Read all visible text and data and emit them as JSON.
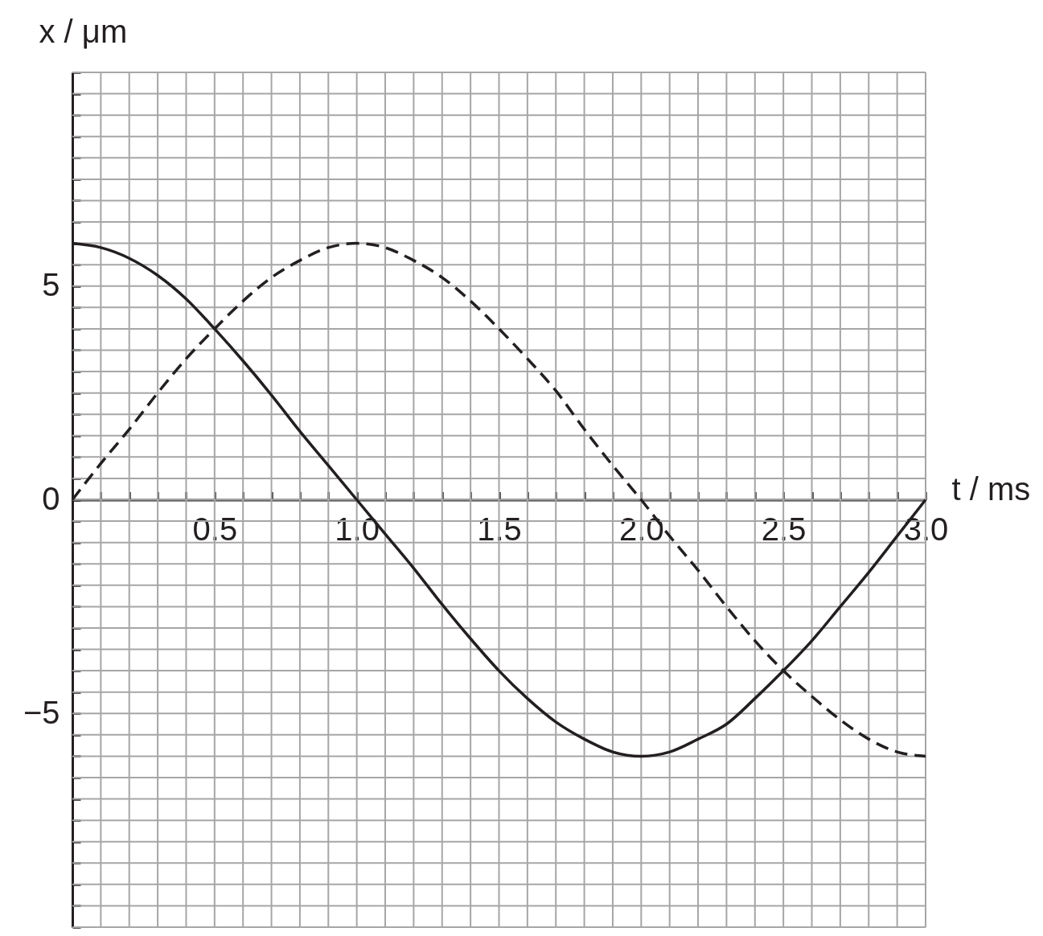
{
  "chart_data": {
    "type": "line",
    "xlabel": "t / ms",
    "ylabel": "x / μm",
    "x": [
      0,
      0.1,
      0.2,
      0.3,
      0.4,
      0.5,
      0.6,
      0.7,
      0.8,
      0.9,
      1,
      1.1,
      1.2,
      1.3,
      1.4,
      1.5,
      1.6,
      1.7,
      1.8,
      1.9,
      2,
      2.1,
      2.2,
      2.3,
      2.4,
      2.5,
      2.6,
      2.7,
      2.8,
      2.9,
      3
    ],
    "series": [
      {
        "color": "#231f20",
        "line_style": "solid",
        "values": [
          6,
          5.9,
          5.65,
          5.25,
          4.7,
          4,
          3.25,
          2.45,
          1.6,
          0.8,
          0,
          -0.8,
          -1.6,
          -2.45,
          -3.25,
          -4,
          -4.65,
          -5.2,
          -5.6,
          -5.9,
          -6,
          -5.9,
          -5.6,
          -5.25,
          -4.65,
          -4,
          -3.3,
          -2.5,
          -1.7,
          -0.85,
          0
        ]
      },
      {
        "color": "#231f20",
        "line_style": "dashed",
        "values": [
          0,
          0.85,
          1.65,
          2.5,
          3.3,
          4,
          4.65,
          5.2,
          5.6,
          5.9,
          6,
          5.9,
          5.6,
          5.2,
          4.65,
          4,
          3.3,
          2.55,
          1.65,
          0.8,
          0,
          -0.85,
          -1.65,
          -2.5,
          -3.3,
          -4,
          -4.6,
          -5.15,
          -5.6,
          -5.9,
          -6
        ]
      }
    ],
    "xlim": [
      0,
      3
    ],
    "ylim": [
      -10,
      10
    ],
    "xticks": [
      {
        "value": 0.1,
        "label": null
      },
      {
        "value": 0.2,
        "label": null
      },
      {
        "value": 0.3,
        "label": null
      },
      {
        "value": 0.4,
        "label": null
      },
      0.5,
      {
        "value": 0.6,
        "label": null
      },
      {
        "value": 0.7,
        "label": null
      },
      {
        "value": 0.8,
        "label": null
      },
      {
        "value": 0.9,
        "label": null
      },
      {
        "value": 1,
        "label": "1.0"
      },
      {
        "value": 1.1,
        "label": null
      },
      {
        "value": 1.2,
        "label": null
      },
      {
        "value": 1.3,
        "label": null
      },
      {
        "value": 1.4,
        "label": null
      },
      1.5,
      {
        "value": 1.6,
        "label": null
      },
      {
        "value": 1.7,
        "label": null
      },
      {
        "value": 1.8,
        "label": null
      },
      {
        "value": 1.9,
        "label": null
      },
      {
        "value": 2,
        "label": "2.0"
      },
      {
        "value": 2.1,
        "label": null
      },
      {
        "value": 2.2,
        "label": null
      },
      {
        "value": 2.3,
        "label": null
      },
      {
        "value": 2.4,
        "label": null
      },
      2.5,
      {
        "value": 2.6,
        "label": null
      },
      {
        "value": 2.7,
        "label": null
      },
      {
        "value": 2.8,
        "label": null
      },
      {
        "value": 2.9,
        "label": null
      },
      {
        "value": 3,
        "label": "3.0"
      }
    ],
    "yticks": [
      {
        "value": -10,
        "label": null
      },
      {
        "value": -9.5,
        "label": null
      },
      {
        "value": -9,
        "label": null
      },
      {
        "value": -8.5,
        "label": null
      },
      {
        "value": -8,
        "label": null
      },
      {
        "value": -7.5,
        "label": null
      },
      {
        "value": -7,
        "label": null
      },
      {
        "value": -6.5,
        "label": null
      },
      {
        "value": -6,
        "label": null
      },
      {
        "value": -5.5,
        "label": null
      },
      {
        "value": -5,
        "label": "−5"
      },
      {
        "value": -4.5,
        "label": null
      },
      {
        "value": -4,
        "label": null
      },
      {
        "value": -3.5,
        "label": null
      },
      {
        "value": -3,
        "label": null
      },
      {
        "value": -2.5,
        "label": null
      },
      {
        "value": -2,
        "label": null
      },
      {
        "value": -1.5,
        "label": null
      },
      {
        "value": -1,
        "label": null
      },
      {
        "value": -0.5,
        "label": null
      },
      0,
      {
        "value": 0.5,
        "label": null
      },
      {
        "value": 1,
        "label": null
      },
      {
        "value": 1.5,
        "label": null
      },
      {
        "value": 2,
        "label": null
      },
      {
        "value": 2.5,
        "label": null
      },
      {
        "value": 3,
        "label": null
      },
      {
        "value": 3.5,
        "label": null
      },
      {
        "value": 4,
        "label": null
      },
      {
        "value": 4.5,
        "label": null
      },
      5,
      {
        "value": 5.5,
        "label": null
      },
      {
        "value": 6,
        "label": null
      },
      {
        "value": 6.5,
        "label": null
      },
      {
        "value": 7,
        "label": null
      },
      {
        "value": 7.5,
        "label": null
      },
      {
        "value": 8,
        "label": null
      },
      {
        "value": 8.5,
        "label": null
      },
      {
        "value": 9,
        "label": null
      },
      {
        "value": 9.5,
        "label": null
      },
      {
        "value": 10,
        "label": null
      }
    ],
    "grid": true
  }
}
